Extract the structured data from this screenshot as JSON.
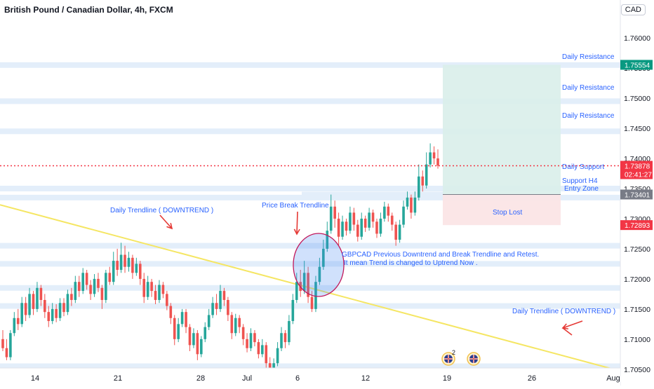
{
  "header": {
    "symbol_title": "British Pound / Canadian Dollar, 4h, FXCM",
    "currency_badge": "CAD"
  },
  "colors": {
    "up": "#26a69a",
    "down": "#ef5350",
    "zone": "#e3eefa",
    "trendline": "#f5e663",
    "annotation_text": "#2962ff",
    "annotation_arrow": "#e53935",
    "target_zone": "#d9eeea",
    "stop_zone": "#fbe3e4",
    "current_price": "#f23645",
    "resistance_tag": "#089981",
    "support_tag": "#787b86"
  },
  "chart_data": {
    "type": "candlestick",
    "ylim": [
      1.7023,
      1.7663
    ],
    "y_ticks": [
      "1.76000",
      "1.75500",
      "1.75000",
      "1.74500",
      "1.74000",
      "1.73500",
      "1.73000",
      "1.72500",
      "1.72000",
      "1.71500",
      "1.71000",
      "1.70500"
    ],
    "x_ticks": [
      "14",
      "21",
      "28",
      "Jul",
      "6",
      "12",
      "19",
      "26",
      "Aug"
    ],
    "price_tags": [
      {
        "label": "1.75554",
        "value": 1.75554,
        "style": "resistance"
      },
      {
        "label": "1.73878",
        "value": 1.73878,
        "style": "current",
        "countdown": "02:41:27"
      },
      {
        "label": "1.73401",
        "value": 1.73401,
        "style": "support"
      },
      {
        "label": "1.72893",
        "value": 1.72893,
        "style": "current"
      }
    ],
    "zones": [
      1.7555,
      1.7495,
      1.7445,
      1.735,
      1.7335,
      1.7255,
      1.7225,
      1.7185,
      1.7155,
      1.7055,
      1.7025
    ],
    "annotations": [
      "Daily Resistance",
      "Daily Resistance",
      "Daily Resistance",
      "Daily Support",
      "Support H4",
      "Entry Zone",
      "Stop Lost",
      "Daily Trendline ( DOWNTREND )",
      "Price Break Trendline",
      "GBPCAD Previous Downtrend and Break Trendline and Retest.",
      "It mean Trend is changed to Uptrend Now .",
      "Daily Trendline ( DOWNTREND )"
    ],
    "events": [
      "2"
    ],
    "candles": [
      [
        1.71,
        1.7085,
        1.7115,
        1.708
      ],
      [
        1.7085,
        1.707,
        1.71,
        1.7065
      ],
      [
        1.707,
        1.711,
        1.7115,
        1.7065
      ],
      [
        1.711,
        1.7135,
        1.7145,
        1.7105
      ],
      [
        1.7135,
        1.7125,
        1.715,
        1.7115
      ],
      [
        1.7125,
        1.716,
        1.717,
        1.712
      ],
      [
        1.716,
        1.714,
        1.717,
        1.713
      ],
      [
        1.714,
        1.7175,
        1.7185,
        1.7135
      ],
      [
        1.7175,
        1.715,
        1.718,
        1.714
      ],
      [
        1.715,
        1.7185,
        1.7195,
        1.7145
      ],
      [
        1.7185,
        1.7165,
        1.719,
        1.7155
      ],
      [
        1.7165,
        1.7145,
        1.7175,
        1.7135
      ],
      [
        1.7145,
        1.713,
        1.7155,
        1.712
      ],
      [
        1.713,
        1.715,
        1.716,
        1.7125
      ],
      [
        1.715,
        1.7135,
        1.7158,
        1.7128
      ],
      [
        1.7135,
        1.716,
        1.7168,
        1.713
      ],
      [
        1.716,
        1.7145,
        1.7168,
        1.7138
      ],
      [
        1.7145,
        1.7175,
        1.7182,
        1.714
      ],
      [
        1.7175,
        1.7165,
        1.7185,
        1.7155
      ],
      [
        1.7165,
        1.7195,
        1.7205,
        1.716
      ],
      [
        1.7195,
        1.718,
        1.7205,
        1.717
      ],
      [
        1.718,
        1.721,
        1.7218,
        1.7175
      ],
      [
        1.721,
        1.719,
        1.7215,
        1.7182
      ],
      [
        1.719,
        1.7175,
        1.7198,
        1.7165
      ],
      [
        1.7175,
        1.72,
        1.7208,
        1.717
      ],
      [
        1.72,
        1.7185,
        1.721,
        1.7178
      ],
      [
        1.7185,
        1.7165,
        1.719,
        1.715
      ],
      [
        1.7165,
        1.721,
        1.7215,
        1.716
      ],
      [
        1.721,
        1.7195,
        1.722,
        1.719
      ],
      [
        1.7195,
        1.723,
        1.7245,
        1.719
      ],
      [
        1.723,
        1.7215,
        1.725,
        1.7205
      ],
      [
        1.7215,
        1.724,
        1.726,
        1.721
      ],
      [
        1.724,
        1.722,
        1.7255,
        1.721
      ],
      [
        1.722,
        1.7235,
        1.7245,
        1.7212
      ],
      [
        1.7235,
        1.721,
        1.724,
        1.72
      ],
      [
        1.721,
        1.7225,
        1.7235,
        1.7205
      ],
      [
        1.7225,
        1.72,
        1.723,
        1.719
      ],
      [
        1.72,
        1.717,
        1.721,
        1.716
      ],
      [
        1.717,
        1.7195,
        1.7205,
        1.7165
      ],
      [
        1.7195,
        1.718,
        1.72,
        1.717
      ],
      [
        1.718,
        1.7165,
        1.719,
        1.7158
      ],
      [
        1.7165,
        1.719,
        1.7198,
        1.716
      ],
      [
        1.719,
        1.7175,
        1.7195,
        1.7168
      ],
      [
        1.7175,
        1.7155,
        1.718,
        1.7148
      ],
      [
        1.7155,
        1.7135,
        1.716,
        1.7125
      ],
      [
        1.7135,
        1.71,
        1.714,
        1.709
      ],
      [
        1.71,
        1.7125,
        1.7135,
        1.7095
      ],
      [
        1.7125,
        1.7145,
        1.715,
        1.712
      ],
      [
        1.7145,
        1.712,
        1.715,
        1.711
      ],
      [
        1.712,
        1.709,
        1.7125,
        1.708
      ],
      [
        1.709,
        1.711,
        1.7118,
        1.7085
      ],
      [
        1.711,
        1.7075,
        1.7115,
        1.7065
      ],
      [
        1.7075,
        1.71,
        1.7105,
        1.707
      ],
      [
        1.71,
        1.712,
        1.7128,
        1.7095
      ],
      [
        1.712,
        1.714,
        1.715,
        1.7115
      ],
      [
        1.714,
        1.716,
        1.717,
        1.7135
      ],
      [
        1.716,
        1.715,
        1.7175,
        1.714
      ],
      [
        1.715,
        1.718,
        1.719,
        1.7145
      ],
      [
        1.718,
        1.7165,
        1.7185,
        1.7155
      ],
      [
        1.7165,
        1.714,
        1.717,
        1.713
      ],
      [
        1.714,
        1.711,
        1.7145,
        1.71
      ],
      [
        1.711,
        1.7135,
        1.7142,
        1.7105
      ],
      [
        1.7135,
        1.712,
        1.714,
        1.711
      ],
      [
        1.712,
        1.71,
        1.7125,
        1.709
      ],
      [
        1.71,
        1.7085,
        1.711,
        1.7078
      ],
      [
        1.7085,
        1.711,
        1.7118,
        1.708
      ],
      [
        1.711,
        1.7095,
        1.7115,
        1.7088
      ],
      [
        1.7095,
        1.7075,
        1.71,
        1.7068
      ],
      [
        1.7075,
        1.709,
        1.71,
        1.707
      ],
      [
        1.709,
        1.706,
        1.7095,
        1.705
      ],
      [
        1.706,
        1.704,
        1.707,
        1.703
      ],
      [
        1.704,
        1.706,
        1.7068,
        1.7035
      ],
      [
        1.706,
        1.7085,
        1.7095,
        1.7055
      ],
      [
        1.7085,
        1.711,
        1.712,
        1.708
      ],
      [
        1.711,
        1.7095,
        1.7115,
        1.7085
      ],
      [
        1.7095,
        1.713,
        1.714,
        1.709
      ],
      [
        1.713,
        1.7165,
        1.7175,
        1.7125
      ],
      [
        1.7165,
        1.7195,
        1.721,
        1.716
      ],
      [
        1.7195,
        1.718,
        1.7215,
        1.717
      ],
      [
        1.718,
        1.721,
        1.723,
        1.7175
      ],
      [
        1.721,
        1.717,
        1.722,
        1.716
      ],
      [
        1.717,
        1.715,
        1.718,
        1.7145
      ],
      [
        1.715,
        1.7195,
        1.7205,
        1.7145
      ],
      [
        1.7195,
        1.722,
        1.7235,
        1.719
      ],
      [
        1.722,
        1.725,
        1.7265,
        1.7215
      ],
      [
        1.725,
        1.728,
        1.7295,
        1.7245
      ],
      [
        1.728,
        1.732,
        1.734,
        1.7275
      ],
      [
        1.732,
        1.73,
        1.733,
        1.7285
      ],
      [
        1.73,
        1.727,
        1.731,
        1.7255
      ],
      [
        1.727,
        1.7295,
        1.7305,
        1.7265
      ],
      [
        1.7295,
        1.728,
        1.73,
        1.7272
      ],
      [
        1.728,
        1.731,
        1.732,
        1.7275
      ],
      [
        1.731,
        1.729,
        1.7318,
        1.728
      ],
      [
        1.729,
        1.727,
        1.7298,
        1.7262
      ],
      [
        1.727,
        1.73,
        1.731,
        1.7265
      ],
      [
        1.73,
        1.7285,
        1.7305,
        1.7278
      ],
      [
        1.7285,
        1.731,
        1.7318,
        1.728
      ],
      [
        1.731,
        1.7295,
        1.7315,
        1.7285
      ],
      [
        1.7295,
        1.7275,
        1.73,
        1.7268
      ],
      [
        1.7275,
        1.73,
        1.731,
        1.727
      ],
      [
        1.73,
        1.732,
        1.7328,
        1.7295
      ],
      [
        1.732,
        1.7305,
        1.7325,
        1.7295
      ],
      [
        1.7305,
        1.729,
        1.731,
        1.728
      ],
      [
        1.729,
        1.7265,
        1.7295,
        1.7255
      ],
      [
        1.7265,
        1.729,
        1.7298,
        1.726
      ],
      [
        1.729,
        1.732,
        1.733,
        1.7285
      ],
      [
        1.732,
        1.7335,
        1.7345,
        1.7315
      ],
      [
        1.7335,
        1.731,
        1.734,
        1.73
      ],
      [
        1.731,
        1.7335,
        1.7345,
        1.7305
      ],
      [
        1.7335,
        1.737,
        1.739,
        1.733
      ],
      [
        1.737,
        1.7355,
        1.738,
        1.7345
      ],
      [
        1.7355,
        1.739,
        1.741,
        1.735
      ],
      [
        1.739,
        1.741,
        1.7425,
        1.7385
      ],
      [
        1.741,
        1.74,
        1.742,
        1.739
      ],
      [
        1.74,
        1.7388,
        1.7415,
        1.7383
      ]
    ]
  }
}
